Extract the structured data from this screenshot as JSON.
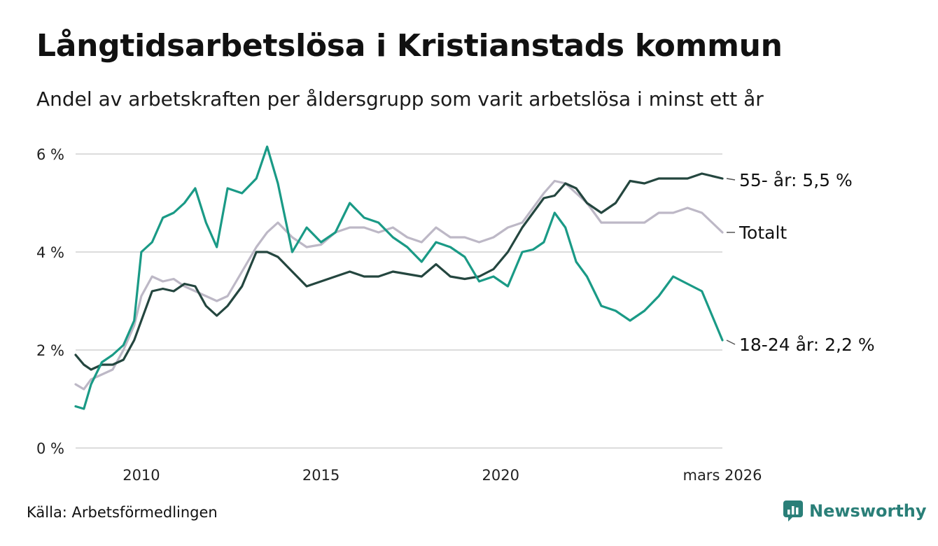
{
  "header": {
    "title": "Långtidsarbetslösa i Kristianstads kommun",
    "subtitle": "Andel av arbetskraften per åldersgrupp som varit arbetslösa i minst ett år"
  },
  "footer": {
    "source": "Källa: Arbetsförmedlingen",
    "brand": "Newsworthy"
  },
  "colors": {
    "youth": "#1a9a86",
    "senior": "#24463f",
    "total": "#bdb8c6",
    "grid": "#dcdcdc",
    "brand": "#2a7f78"
  },
  "chart_data": {
    "type": "line",
    "title": "Långtidsarbetslösa i Kristianstads kommun",
    "subtitle": "Andel av arbetskraften per åldersgrupp som varit arbetslösa i minst ett år",
    "xlabel": "",
    "ylabel": "",
    "xlim": [
      2008.17,
      2026.17
    ],
    "ylim": [
      0,
      6
    ],
    "grid": true,
    "legend": "end labels",
    "y_ticks": [
      {
        "value": 0,
        "label": "0 %"
      },
      {
        "value": 2,
        "label": "2 %"
      },
      {
        "value": 4,
        "label": "4 %"
      },
      {
        "value": 6,
        "label": "6 %"
      }
    ],
    "x_ticks": [
      {
        "value": 2010,
        "label": "2010"
      },
      {
        "value": 2015,
        "label": "2015"
      },
      {
        "value": 2020,
        "label": "2020"
      },
      {
        "value": 2026.17,
        "label": "mars 2026"
      }
    ],
    "series": [
      {
        "name": "Totalt",
        "key": "total",
        "end_label": "Totalt",
        "x": [
          2008.17,
          2008.4,
          2008.6,
          2008.9,
          2009.2,
          2009.5,
          2009.8,
          2010.0,
          2010.3,
          2010.6,
          2010.9,
          2011.2,
          2011.5,
          2011.8,
          2012.1,
          2012.4,
          2012.8,
          2013.2,
          2013.5,
          2013.8,
          2014.2,
          2014.6,
          2015.0,
          2015.4,
          2015.8,
          2016.2,
          2016.6,
          2017.0,
          2017.4,
          2017.8,
          2018.2,
          2018.6,
          2019.0,
          2019.4,
          2019.8,
          2020.2,
          2020.6,
          2020.9,
          2021.2,
          2021.5,
          2021.8,
          2022.1,
          2022.4,
          2022.8,
          2023.2,
          2023.6,
          2024.0,
          2024.4,
          2024.8,
          2025.2,
          2025.6,
          2026.17
        ],
        "values": [
          1.3,
          1.2,
          1.4,
          1.5,
          1.6,
          2.0,
          2.5,
          3.1,
          3.5,
          3.4,
          3.45,
          3.3,
          3.2,
          3.1,
          3.0,
          3.1,
          3.6,
          4.1,
          4.4,
          4.6,
          4.3,
          4.1,
          4.15,
          4.4,
          4.5,
          4.5,
          4.4,
          4.5,
          4.3,
          4.2,
          4.5,
          4.3,
          4.3,
          4.2,
          4.3,
          4.5,
          4.6,
          4.9,
          5.2,
          5.45,
          5.4,
          5.2,
          5.0,
          4.6,
          4.6,
          4.6,
          4.6,
          4.8,
          4.8,
          4.9,
          4.8,
          4.4
        ]
      },
      {
        "name": "55- år",
        "key": "senior",
        "end_label": "55- år: 5,5 %",
        "x": [
          2008.17,
          2008.4,
          2008.6,
          2008.9,
          2009.2,
          2009.5,
          2009.8,
          2010.0,
          2010.3,
          2010.6,
          2010.9,
          2011.2,
          2011.5,
          2011.8,
          2012.1,
          2012.4,
          2012.8,
          2013.2,
          2013.5,
          2013.8,
          2014.2,
          2014.6,
          2015.0,
          2015.4,
          2015.8,
          2016.2,
          2016.6,
          2017.0,
          2017.4,
          2017.8,
          2018.2,
          2018.6,
          2019.0,
          2019.4,
          2019.8,
          2020.2,
          2020.6,
          2020.9,
          2021.2,
          2021.5,
          2021.8,
          2022.1,
          2022.4,
          2022.8,
          2023.2,
          2023.6,
          2024.0,
          2024.4,
          2024.8,
          2025.2,
          2025.6,
          2026.17
        ],
        "values": [
          1.9,
          1.7,
          1.6,
          1.7,
          1.7,
          1.8,
          2.2,
          2.6,
          3.2,
          3.25,
          3.2,
          3.35,
          3.3,
          2.9,
          2.7,
          2.9,
          3.3,
          4.0,
          4.0,
          3.9,
          3.6,
          3.3,
          3.4,
          3.5,
          3.6,
          3.5,
          3.5,
          3.6,
          3.55,
          3.5,
          3.75,
          3.5,
          3.45,
          3.5,
          3.65,
          4.0,
          4.5,
          4.8,
          5.1,
          5.15,
          5.4,
          5.3,
          5.0,
          4.8,
          5.0,
          5.45,
          5.4,
          5.5,
          5.5,
          5.5,
          5.6,
          5.5
        ]
      },
      {
        "name": "18-24 år",
        "key": "youth",
        "end_label": "18-24 år: 2,2 %",
        "x": [
          2008.17,
          2008.4,
          2008.6,
          2008.9,
          2009.2,
          2009.5,
          2009.8,
          2010.0,
          2010.3,
          2010.6,
          2010.9,
          2011.2,
          2011.5,
          2011.8,
          2012.1,
          2012.4,
          2012.8,
          2013.2,
          2013.5,
          2013.8,
          2014.2,
          2014.6,
          2015.0,
          2015.4,
          2015.8,
          2016.2,
          2016.6,
          2017.0,
          2017.4,
          2017.8,
          2018.2,
          2018.6,
          2019.0,
          2019.4,
          2019.8,
          2020.2,
          2020.6,
          2020.9,
          2021.2,
          2021.5,
          2021.8,
          2022.1,
          2022.4,
          2022.8,
          2023.2,
          2023.6,
          2024.0,
          2024.4,
          2024.8,
          2025.2,
          2025.6,
          2026.17
        ],
        "values": [
          0.85,
          0.8,
          1.3,
          1.75,
          1.9,
          2.1,
          2.6,
          4.0,
          4.2,
          4.7,
          4.8,
          5.0,
          5.3,
          4.6,
          4.1,
          5.3,
          5.2,
          5.5,
          6.15,
          5.4,
          4.0,
          4.5,
          4.2,
          4.4,
          5.0,
          4.7,
          4.6,
          4.3,
          4.1,
          3.8,
          4.2,
          4.1,
          3.9,
          3.4,
          3.5,
          3.3,
          4.0,
          4.05,
          4.2,
          4.8,
          4.5,
          3.8,
          3.5,
          2.9,
          2.8,
          2.6,
          2.8,
          3.1,
          3.5,
          3.35,
          3.2,
          2.2
        ]
      }
    ]
  }
}
